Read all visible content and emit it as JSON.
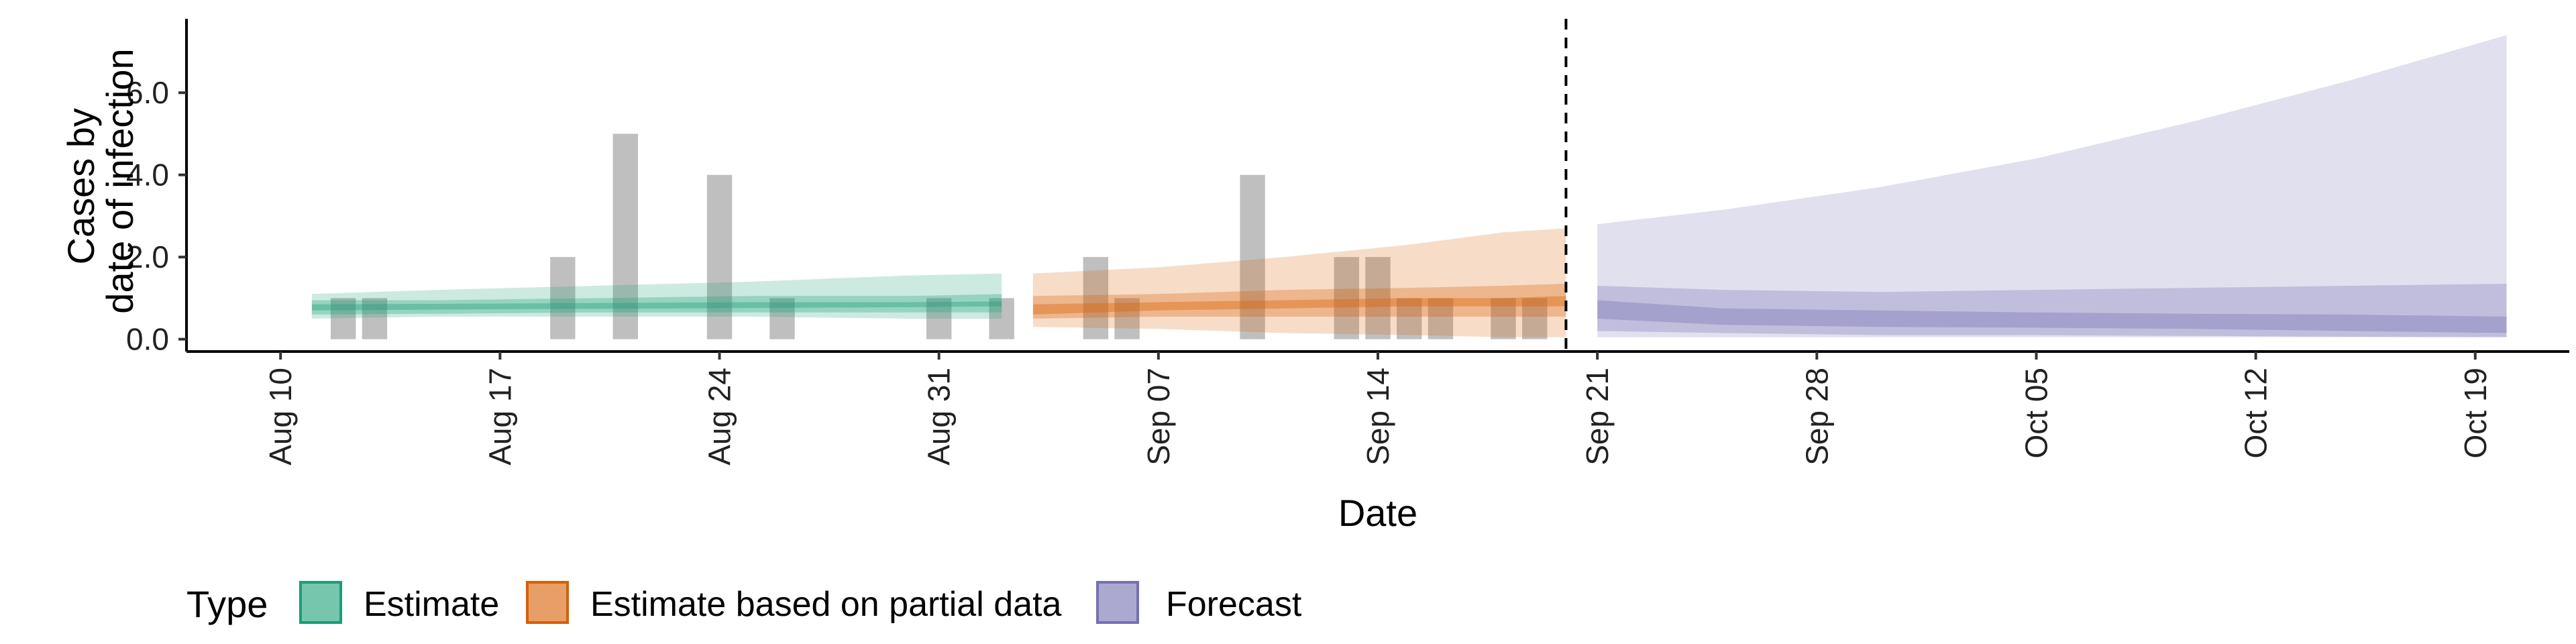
{
  "chart_data": {
    "type": "area",
    "xlabel": "Date",
    "ylabel_lines": [
      "Cases by",
      "date of infection"
    ],
    "ylim": [
      -0.3,
      7.8
    ],
    "y_ticks": [
      0,
      2,
      4,
      6
    ],
    "y_tick_labels": [
      "0.0",
      "2.0",
      "4.0",
      "6.0"
    ],
    "x_ticks": [
      "2020-08-10",
      "2020-08-17",
      "2020-08-24",
      "2020-08-31",
      "2020-09-07",
      "2020-09-14",
      "2020-09-21",
      "2020-09-28",
      "2020-10-05",
      "2020-10-12",
      "2020-10-19"
    ],
    "x_tick_labels": [
      "Aug 10",
      "Aug 17",
      "Aug 24",
      "Aug 31",
      "Sep 07",
      "Sep 14",
      "Sep 21",
      "Sep 28",
      "Oct 05",
      "Oct 12",
      "Oct 19"
    ],
    "xlim": [
      "2020-08-07",
      "2020-10-22"
    ],
    "vline_date": "2020-09-20",
    "legend": {
      "title": "Type",
      "position": "bottom",
      "entries": [
        "Estimate",
        "Estimate based on partial data",
        "Forecast"
      ]
    },
    "colors": {
      "Estimate": "#1b9e77",
      "Estimate based on partial data": "#d95f02",
      "Forecast": "#7570b3",
      "reported_bars": "#a9a9a9"
    },
    "reported_cases": [
      {
        "date": "2020-08-12",
        "value": 1
      },
      {
        "date": "2020-08-13",
        "value": 1
      },
      {
        "date": "2020-08-19",
        "value": 2
      },
      {
        "date": "2020-08-21",
        "value": 5
      },
      {
        "date": "2020-08-24",
        "value": 4
      },
      {
        "date": "2020-08-26",
        "value": 1
      },
      {
        "date": "2020-08-31",
        "value": 1
      },
      {
        "date": "2020-09-02",
        "value": 1
      },
      {
        "date": "2020-09-05",
        "value": 2
      },
      {
        "date": "2020-09-06",
        "value": 1
      },
      {
        "date": "2020-09-10",
        "value": 4
      },
      {
        "date": "2020-09-13",
        "value": 2
      },
      {
        "date": "2020-09-14",
        "value": 2
      },
      {
        "date": "2020-09-15",
        "value": 1
      },
      {
        "date": "2020-09-16",
        "value": 1
      },
      {
        "date": "2020-09-18",
        "value": 1
      },
      {
        "date": "2020-09-19",
        "value": 1
      }
    ],
    "series": [
      {
        "name": "Estimate",
        "dates": [
          "2020-08-11",
          "2020-08-15",
          "2020-08-20",
          "2020-08-25",
          "2020-08-30",
          "2020-09-02"
        ],
        "outer_lower": [
          0.5,
          0.55,
          0.55,
          0.55,
          0.5,
          0.5
        ],
        "outer_upper": [
          1.1,
          1.2,
          1.3,
          1.4,
          1.55,
          1.6
        ],
        "mid_lower": [
          0.6,
          0.62,
          0.65,
          0.65,
          0.65,
          0.65
        ],
        "mid_upper": [
          0.95,
          0.95,
          1.0,
          1.05,
          1.05,
          1.1
        ],
        "inner_lower": [
          0.7,
          0.72,
          0.74,
          0.76,
          0.78,
          0.8
        ],
        "inner_upper": [
          0.85,
          0.86,
          0.88,
          0.9,
          0.9,
          0.92
        ]
      },
      {
        "name": "Estimate based on partial data",
        "dates": [
          "2020-09-03",
          "2020-09-07",
          "2020-09-11",
          "2020-09-15",
          "2020-09-18",
          "2020-09-20"
        ],
        "outer_lower": [
          0.3,
          0.25,
          0.15,
          0.1,
          0.05,
          0.05
        ],
        "outer_upper": [
          1.6,
          1.75,
          2.0,
          2.3,
          2.6,
          2.7
        ],
        "mid_lower": [
          0.5,
          0.55,
          0.55,
          0.55,
          0.55,
          0.55
        ],
        "mid_upper": [
          1.05,
          1.1,
          1.2,
          1.25,
          1.3,
          1.35
        ],
        "inner_lower": [
          0.6,
          0.7,
          0.75,
          0.8,
          0.8,
          0.8
        ],
        "inner_upper": [
          0.85,
          0.9,
          0.95,
          1.0,
          1.0,
          1.05
        ]
      },
      {
        "name": "Forecast",
        "dates": [
          "2020-09-21",
          "2020-09-25",
          "2020-09-30",
          "2020-10-05",
          "2020-10-10",
          "2020-10-15",
          "2020-10-20"
        ],
        "outer_lower": [
          0.05,
          0.05,
          0.05,
          0.05,
          0.05,
          0.05,
          0.05
        ],
        "outer_upper": [
          2.8,
          3.15,
          3.7,
          4.4,
          5.3,
          6.3,
          7.4
        ],
        "mid_lower": [
          0.2,
          0.15,
          0.1,
          0.1,
          0.08,
          0.06,
          0.05
        ],
        "mid_upper": [
          1.3,
          1.2,
          1.15,
          1.2,
          1.25,
          1.3,
          1.35
        ],
        "inner_lower": [
          0.5,
          0.35,
          0.3,
          0.28,
          0.25,
          0.2,
          0.15
        ],
        "inner_upper": [
          0.95,
          0.75,
          0.7,
          0.65,
          0.62,
          0.6,
          0.55
        ]
      }
    ]
  }
}
